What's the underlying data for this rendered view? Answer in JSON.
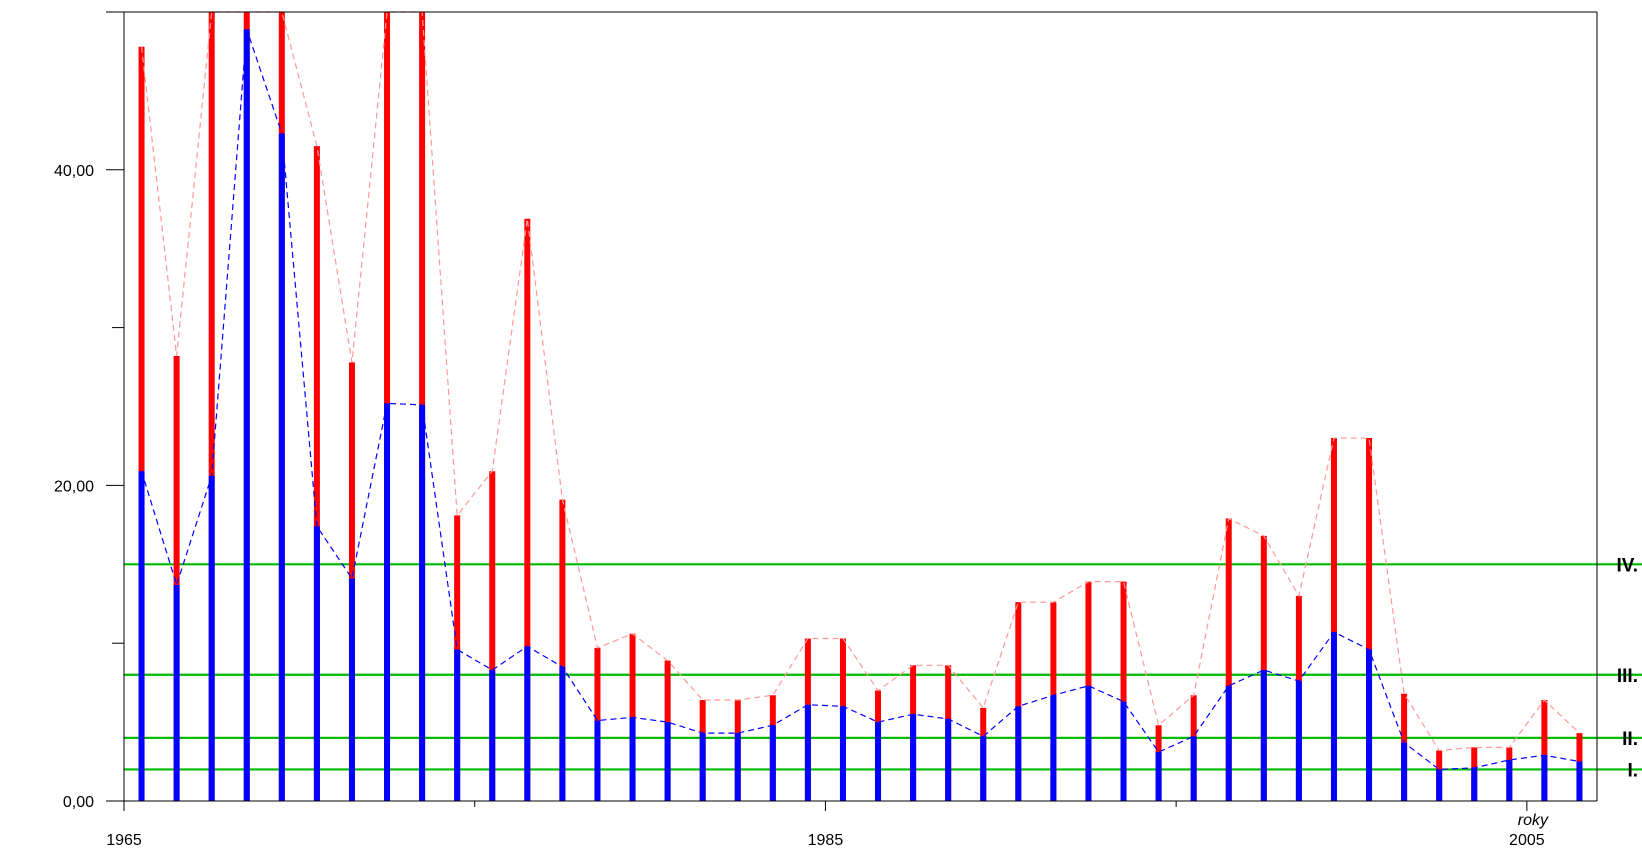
{
  "chart_data": {
    "type": "bar",
    "title": "",
    "xlabel": "roky",
    "ylabel": "",
    "x_ticks": [
      {
        "value": 1965,
        "label": "1965"
      },
      {
        "value": 1985,
        "label": "1985"
      },
      {
        "value": 2005,
        "label": "2005"
      }
    ],
    "x_minor_ticks": [
      1975,
      1995
    ],
    "y_ticks": [
      {
        "value": 0,
        "label": "0,00"
      },
      {
        "value": 20,
        "label": "20,00"
      },
      {
        "value": 40,
        "label": "40,00"
      }
    ],
    "y_minor_ticks": [
      10,
      30
    ],
    "xlim": [
      1965,
      2007
    ],
    "ylim": [
      0,
      50
    ],
    "grid": false,
    "colors": {
      "upper_series": "#ff0000",
      "lower_series": "#0000ff",
      "upper_line": "#ff9999",
      "lower_line": "#0000ff",
      "class_lines": "#00bb00",
      "frame": "#000000"
    },
    "years": [
      1965.5,
      1966.5,
      1967.5,
      1968.5,
      1969.5,
      1970.5,
      1971.5,
      1972.5,
      1973.5,
      1974.5,
      1975.5,
      1976.5,
      1977.5,
      1978.5,
      1979.5,
      1980.5,
      1981.5,
      1982.5,
      1983.5,
      1984.5,
      1985.5,
      1986.5,
      1987.5,
      1988.5,
      1989.5,
      1990.5,
      1991.5,
      1992.5,
      1993.5,
      1994.5,
      1995.5,
      1996.5,
      1997.5,
      1998.5,
      1999.5,
      2000.5,
      2001.5,
      2002.5,
      2003.5,
      2004.5,
      2005.5,
      2006.5
    ],
    "series": [
      {
        "values": [
          47.8,
          28.2,
          50.0,
          50.0,
          50.0,
          41.5,
          27.8,
          50.0,
          50.0,
          18.1,
          20.9,
          36.9,
          19.1,
          9.7,
          10.6,
          8.9,
          6.4,
          6.4,
          6.7,
          10.3,
          10.3,
          7.0,
          8.6,
          8.6,
          5.9,
          12.6,
          12.6,
          13.9,
          13.9,
          4.8,
          6.7,
          17.9,
          16.8,
          13.0,
          23.0,
          23.0,
          6.8,
          3.2,
          3.4,
          3.4,
          6.4,
          4.3
        ]
      },
      {
        "values": [
          20.9,
          13.7,
          20.6,
          48.9,
          42.3,
          17.4,
          14.1,
          25.2,
          25.1,
          9.6,
          8.3,
          9.8,
          8.5,
          5.1,
          5.3,
          5.0,
          4.3,
          4.3,
          4.8,
          6.1,
          6.0,
          5.0,
          5.5,
          5.2,
          4.1,
          6.0,
          6.7,
          7.3,
          6.3,
          3.1,
          4.1,
          7.3,
          8.3,
          7.6,
          10.7,
          9.6,
          3.7,
          2.0,
          2.1,
          2.6,
          2.9,
          2.5
        ]
      }
    ],
    "class_lines": [
      {
        "value": 15.0,
        "label": "IV."
      },
      {
        "value": 8.0,
        "label": "III."
      },
      {
        "value": 4.0,
        "label": "II."
      },
      {
        "value": 2.0,
        "label": "I."
      }
    ]
  }
}
